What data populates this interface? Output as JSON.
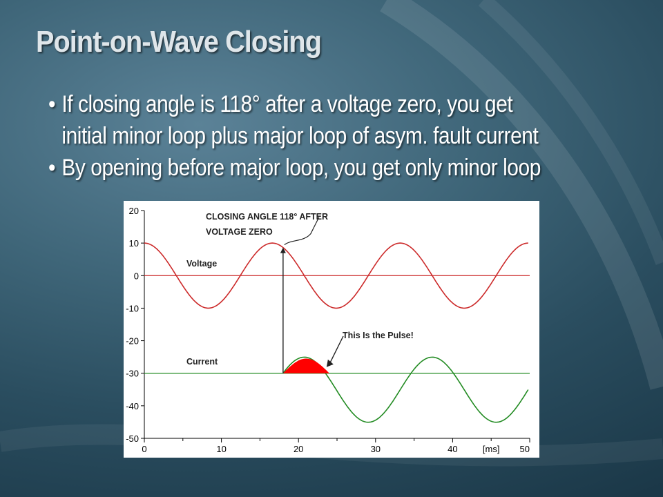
{
  "slide": {
    "title": "Point-on-Wave Closing",
    "bullet_glyph": "•",
    "bullets": [
      "If closing angle is 118° after a voltage zero, you get",
      "initial minor loop plus major loop of asym. fault current",
      "By opening before major loop, you get only minor loop"
    ]
  },
  "chart_data": {
    "type": "line",
    "x_unit_label": "[ms]",
    "xlim": [
      0,
      50
    ],
    "ylim": [
      -50,
      20
    ],
    "x_ticks": [
      "0",
      "10",
      "20",
      "30",
      "40",
      "50"
    ],
    "y_ticks": [
      "20",
      "10",
      "0",
      "-10",
      "-20",
      "-30",
      "-40",
      "-50"
    ],
    "annotations": {
      "closing": [
        "CLOSING ANGLE 118° AFTER",
        "VOLTAGE  ZERO"
      ],
      "voltage": "Voltage",
      "current": "Current",
      "pulse": "This Is the Pulse!"
    },
    "series": [
      {
        "name": "Voltage",
        "color": "#cc2a2a",
        "amplitude": 10,
        "offset": 0,
        "period_ms": 16.6,
        "peak_at_ms": 0
      },
      {
        "name": "Current",
        "color": "#228b22",
        "baseline": -30,
        "start_ms": 18,
        "amplitude": 10,
        "period_ms": 16.6
      },
      {
        "name": "Pulse",
        "color": "#ff0000",
        "from_ms": 18,
        "to_ms": 24,
        "peak": -25.5
      }
    ],
    "closing_time_ms": 18,
    "grid": false
  }
}
